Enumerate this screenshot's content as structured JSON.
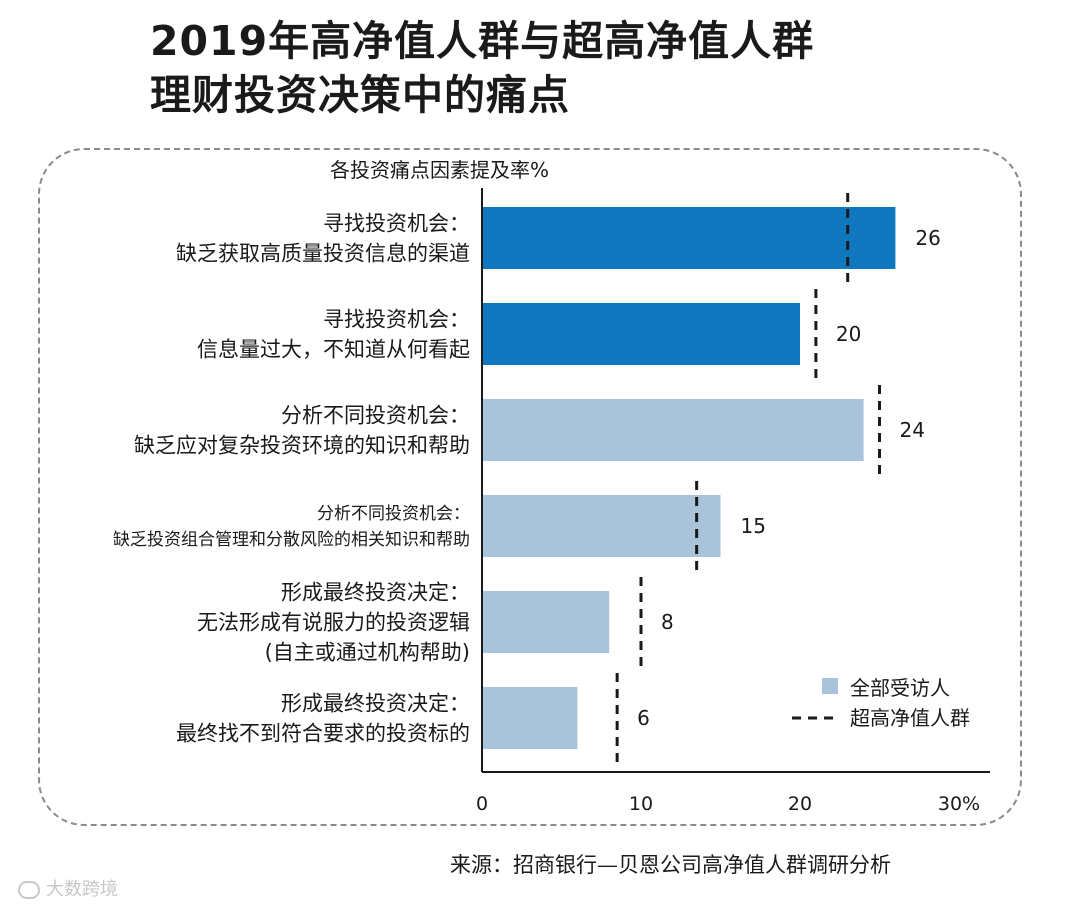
{
  "title_lines": [
    "2019年高净值人群与超高净值人群",
    "理财投资决策中的痛点"
  ],
  "source": "来源：招商银行—贝恩公司高净值人群调研分析",
  "watermark": "大数跨境",
  "colors": {
    "dark_bar": "#0f77bd",
    "light_bar": "#a9c3da",
    "marker": "#1a1a1a",
    "axis": "#1a1a1a"
  },
  "chart_data": {
    "type": "bar",
    "orientation": "horizontal",
    "title": "各投资痛点因素提及率%",
    "categories": [
      [
        "寻找投资机会：",
        "缺乏获取高质量投资信息的渠道"
      ],
      [
        "寻找投资机会：",
        "信息量过大，不知道从何看起"
      ],
      [
        "分析不同投资机会：",
        "缺乏应对复杂投资环境的知识和帮助"
      ],
      [
        "分析不同投资机会：",
        "缺乏投资组合管理和分散风险的相关知识和帮助"
      ],
      [
        "形成最终投资决定：",
        "无法形成有说服力的投资逻辑",
        "(自主或通过机构帮助)"
      ],
      [
        "形成最终投资决定：",
        "最终找不到符合要求的投资标的"
      ]
    ],
    "series": [
      {
        "name": "全部受访人",
        "values": [
          26,
          20,
          24,
          15,
          8,
          6
        ],
        "value_labels": [
          "26",
          "20",
          "24",
          "15",
          "8",
          "6"
        ]
      },
      {
        "name": "超高净值人群",
        "style": "dashed-marker",
        "values": [
          23,
          21,
          25,
          13.5,
          10,
          8.5
        ]
      }
    ],
    "bar_color_keys": [
      "dark_bar",
      "dark_bar",
      "light_bar",
      "light_bar",
      "light_bar",
      "light_bar"
    ],
    "xlim": [
      0,
      32
    ],
    "xticks": [
      0,
      10,
      20,
      30
    ],
    "xtick_labels": [
      "0",
      "10",
      "20",
      "30%"
    ],
    "legend_position": "bottom-right"
  }
}
